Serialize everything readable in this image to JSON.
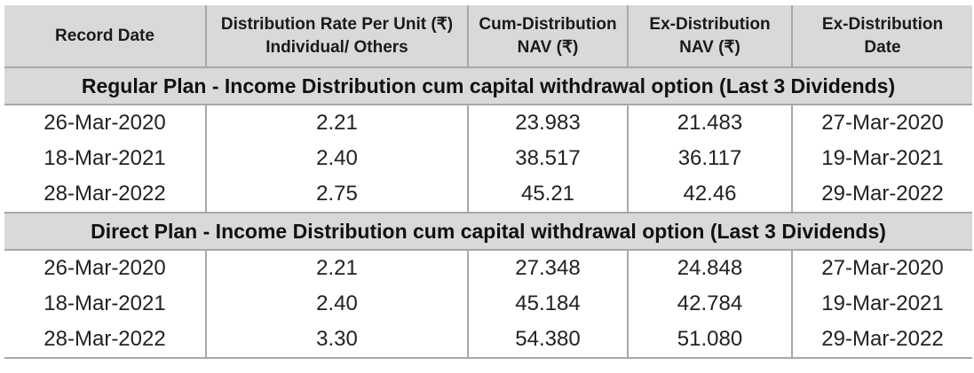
{
  "headers": [
    {
      "line1": "Record Date",
      "line2": ""
    },
    {
      "line1": "Distribution Rate Per Unit  (₹)",
      "line2": "Individual/ Others"
    },
    {
      "line1": "Cum-Distribution",
      "line2": "NAV (₹)"
    },
    {
      "line1": "Ex-Distribution",
      "line2": "NAV (₹)"
    },
    {
      "line1": "Ex-Distribution",
      "line2": "Date"
    }
  ],
  "sections": [
    {
      "title": "Regular Plan - Income Distribution cum capital withdrawal option (Last 3 Dividends)",
      "rows": [
        [
          "26-Mar-2020",
          "2.21",
          "23.983",
          "21.483",
          "27-Mar-2020"
        ],
        [
          "18-Mar-2021",
          "2.40",
          "38.517",
          "36.117",
          "19-Mar-2021"
        ],
        [
          "28-Mar-2022",
          "2.75",
          "45.21",
          "42.46",
          "29-Mar-2022"
        ]
      ]
    },
    {
      "title": "Direct Plan - Income Distribution cum capital withdrawal option (Last 3 Dividends)",
      "rows": [
        [
          "26-Mar-2020",
          "2.21",
          "27.348",
          "24.848",
          "27-Mar-2020"
        ],
        [
          "18-Mar-2021",
          "2.40",
          "45.184",
          "42.784",
          "19-Mar-2021"
        ],
        [
          "28-Mar-2022",
          "3.30",
          "54.380",
          "51.080",
          "29-Mar-2022"
        ]
      ]
    }
  ]
}
